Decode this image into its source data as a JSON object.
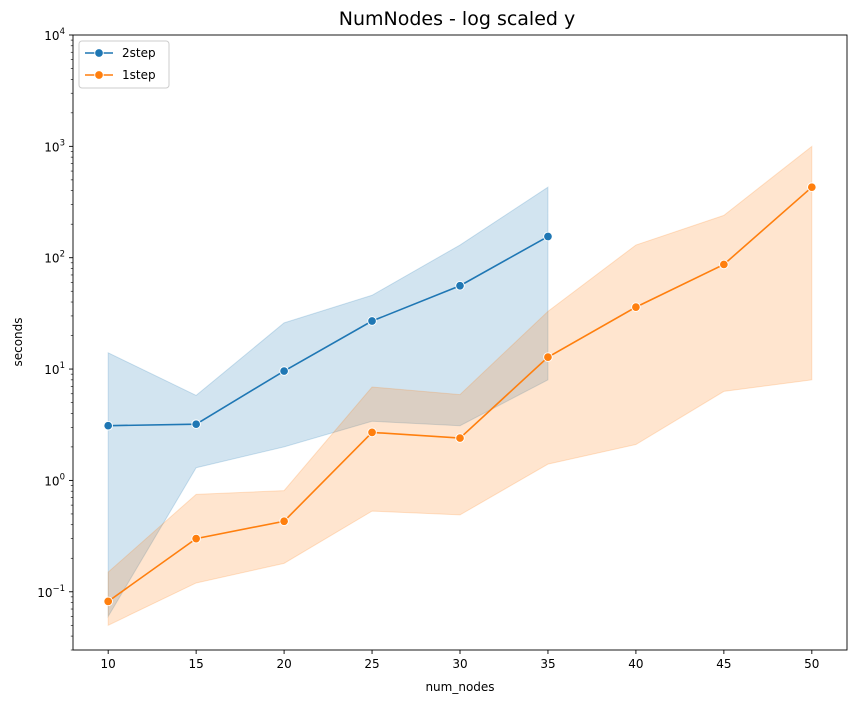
{
  "chart_data": {
    "type": "line",
    "title": "NumNodes - log scaled y",
    "xlabel": "num_nodes",
    "ylabel": "seconds",
    "xlim": [
      8,
      52
    ],
    "ylim": [
      0.03,
      10000
    ],
    "y_scale": "log",
    "x_ticks": [
      10,
      15,
      20,
      25,
      30,
      35,
      40,
      45,
      50
    ],
    "x_tick_labels": [
      "10",
      "15",
      "20",
      "25",
      "30",
      "35",
      "40",
      "45",
      "50"
    ],
    "y_ticks": [
      0.1,
      1,
      10,
      100,
      1000,
      10000
    ],
    "y_tick_labels": [
      {
        "base": "10",
        "exp": "−1"
      },
      {
        "base": "10",
        "exp": "0"
      },
      {
        "base": "10",
        "exp": "1"
      },
      {
        "base": "10",
        "exp": "2"
      },
      {
        "base": "10",
        "exp": "3"
      },
      {
        "base": "10",
        "exp": "4"
      }
    ],
    "grid": false,
    "legend_position": "top-left",
    "series": [
      {
        "name": "2step",
        "color": "#1f77b4",
        "x": [
          10,
          15,
          20,
          25,
          30,
          35
        ],
        "values": [
          3.1,
          3.2,
          9.6,
          27,
          56,
          155
        ],
        "ci_lower": [
          0.06,
          1.3,
          2.0,
          3.4,
          3.1,
          8.0
        ],
        "ci_upper": [
          14.0,
          5.8,
          26,
          46,
          130,
          430
        ]
      },
      {
        "name": "1step",
        "color": "#ff7f0e",
        "x": [
          10,
          15,
          20,
          25,
          30,
          35,
          40,
          45,
          50
        ],
        "values": [
          0.082,
          0.3,
          0.43,
          2.7,
          2.4,
          12.8,
          36,
          87,
          430
        ],
        "ci_lower": [
          0.05,
          0.12,
          0.18,
          0.53,
          0.49,
          1.4,
          2.1,
          6.3,
          8.0
        ],
        "ci_upper": [
          0.15,
          0.75,
          0.81,
          6.9,
          5.9,
          33,
          130,
          240,
          1000
        ]
      }
    ]
  }
}
